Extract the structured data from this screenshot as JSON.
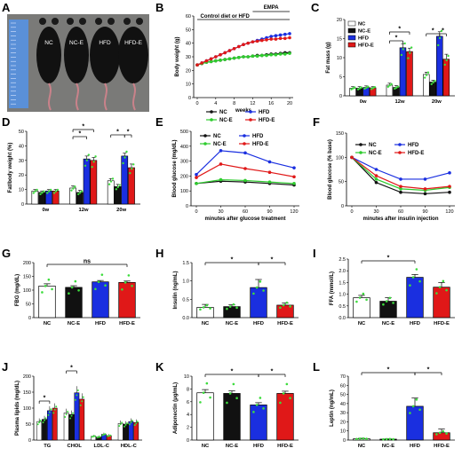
{
  "colors": {
    "NC": "#ffffff",
    "NC-E": "#111111",
    "HFD": "#1a2fe0",
    "HFD-E": "#e01818",
    "dots": "#3ddc3d",
    "line_NC": "#111111",
    "line_NCE": "#2ecc2e",
    "line_HFD": "#1a2fe0",
    "line_HFDE": "#e01818"
  },
  "panelA": {
    "label": "A",
    "mouse_labels": [
      "NC",
      "NC-E",
      "HFD",
      "HFD-E"
    ]
  },
  "chart_data": [
    {
      "id": "B",
      "type": "line",
      "ylabel": "Body weight (g)",
      "xlabel": "weeks",
      "ylim": [
        0,
        60
      ],
      "yticks": [
        0,
        10,
        20,
        30,
        40,
        50,
        60
      ],
      "xticks": [
        0,
        4,
        8,
        12,
        16,
        20
      ],
      "annot_top": "EMPA",
      "annot_mid": "Control diet or HFD",
      "legend": [
        "NC",
        "HFD",
        "NC-E",
        "HFD-E"
      ],
      "x": [
        0,
        1,
        2,
        3,
        4,
        5,
        6,
        7,
        8,
        9,
        10,
        11,
        12,
        13,
        14,
        15,
        16,
        17,
        18,
        19,
        20
      ],
      "series": [
        {
          "name": "NC",
          "values": [
            24,
            25,
            26,
            26.5,
            27,
            27.5,
            28,
            28.5,
            29,
            29.5,
            30,
            30,
            30.5,
            31,
            31,
            31.5,
            32,
            32,
            32.5,
            33,
            33
          ]
        },
        {
          "name": "HFD",
          "values": [
            24,
            25.5,
            27,
            28.5,
            30,
            31.5,
            33,
            34.5,
            36,
            37.5,
            39,
            40,
            41,
            42,
            43,
            44,
            45,
            45.5,
            46,
            46.5,
            47
          ]
        },
        {
          "name": "NC-E",
          "values": [
            24,
            25,
            26,
            26.5,
            27,
            27.5,
            28,
            28.5,
            29,
            29.5,
            30,
            30,
            30.5,
            30.5,
            31,
            31,
            31.5,
            31.5,
            32,
            32,
            32.5
          ]
        },
        {
          "name": "HFD-E",
          "values": [
            24,
            25.5,
            27,
            28.5,
            30,
            31.5,
            33,
            34.5,
            36,
            37.5,
            39,
            40,
            41,
            41.5,
            42,
            42.5,
            43,
            43,
            43.5,
            43.5,
            44
          ]
        }
      ]
    },
    {
      "id": "C",
      "type": "bar",
      "ylabel": "Fat mass (g)",
      "ylim": [
        0,
        20
      ],
      "yticks": [
        0,
        5,
        10,
        15,
        20
      ],
      "categories": [
        "0w",
        "12w",
        "20w"
      ],
      "legend": [
        "NC",
        "NC-E",
        "HFD",
        "HFD-E"
      ],
      "series": [
        {
          "name": "NC",
          "values": [
            2.0,
            2.8,
            5.6
          ],
          "err": [
            0.4,
            0.5,
            0.6
          ]
        },
        {
          "name": "NC-E",
          "values": [
            2.0,
            2.2,
            3.6
          ],
          "err": [
            0.4,
            0.5,
            0.5
          ]
        },
        {
          "name": "HFD",
          "values": [
            2.2,
            12.6,
            15.6
          ],
          "err": [
            0.4,
            1.0,
            1.2
          ]
        },
        {
          "name": "HFD-E",
          "values": [
            2.1,
            11.6,
            9.6
          ],
          "err": [
            0.3,
            0.9,
            1.3
          ]
        }
      ],
      "sig_labels": [
        "*",
        "*",
        "*",
        "*"
      ]
    },
    {
      "id": "D",
      "type": "bar",
      "ylabel": "Fat/body weight (%)",
      "ylim": [
        0,
        50
      ],
      "yticks": [
        0,
        10,
        20,
        30,
        40,
        50
      ],
      "categories": [
        "0w",
        "12w",
        "20w"
      ],
      "series": [
        {
          "name": "NC",
          "values": [
            9,
            11,
            16
          ],
          "err": [
            1,
            1.5,
            1.5
          ]
        },
        {
          "name": "NC-E",
          "values": [
            8,
            8,
            12
          ],
          "err": [
            1,
            1.5,
            1.5
          ]
        },
        {
          "name": "HFD",
          "values": [
            9,
            31,
            33
          ],
          "err": [
            1,
            2,
            2
          ]
        },
        {
          "name": "HFD-E",
          "values": [
            9,
            30,
            25
          ],
          "err": [
            1,
            2,
            2.5
          ]
        }
      ],
      "sig_labels": [
        "*",
        "*",
        "*",
        "*"
      ]
    },
    {
      "id": "E",
      "type": "line",
      "ylabel": "Blood glucose (mg/dL)",
      "xlabel": "minutes after glucose treatment",
      "ylim": [
        0,
        500
      ],
      "yticks": [
        0,
        100,
        200,
        300,
        400,
        500
      ],
      "x": [
        0,
        30,
        60,
        90,
        120
      ],
      "legend": [
        "NC",
        "HFD",
        "NC-E",
        "HFD-E"
      ],
      "series": [
        {
          "name": "NC",
          "values": [
            150,
            165,
            160,
            150,
            140
          ]
        },
        {
          "name": "HFD",
          "values": [
            210,
            370,
            355,
            295,
            255
          ]
        },
        {
          "name": "NC-E",
          "values": [
            150,
            175,
            170,
            160,
            150
          ]
        },
        {
          "name": "HFD-E",
          "values": [
            190,
            280,
            250,
            225,
            195
          ]
        }
      ]
    },
    {
      "id": "F",
      "type": "line",
      "ylabel": "Blood glucose (% base)",
      "xlabel": "minutes after insulin injection",
      "ylim": [
        0,
        150
      ],
      "yticks": [
        0,
        50,
        100,
        150
      ],
      "x": [
        0,
        30,
        60,
        90,
        120
      ],
      "legend": [
        "NC",
        "HFD",
        "NC-E",
        "HFD-E"
      ],
      "series": [
        {
          "name": "NC",
          "values": [
            100,
            48,
            28,
            25,
            28
          ]
        },
        {
          "name": "HFD",
          "values": [
            100,
            75,
            55,
            55,
            68
          ]
        },
        {
          "name": "NC-E",
          "values": [
            100,
            55,
            35,
            32,
            38
          ]
        },
        {
          "name": "HFD-E",
          "values": [
            100,
            62,
            40,
            35,
            40
          ]
        }
      ]
    },
    {
      "id": "G",
      "type": "bar",
      "ylabel": "FBG (mg/dL)",
      "ylim": [
        0,
        200
      ],
      "yticks": [
        0,
        50,
        100,
        150,
        200
      ],
      "categories": [
        "NC",
        "NC-E",
        "HFD",
        "HFD-E"
      ],
      "values": [
        115,
        110,
        130,
        128
      ],
      "err": [
        8,
        6,
        5,
        5
      ],
      "sig": "ns"
    },
    {
      "id": "H",
      "type": "bar",
      "ylabel": "Insulin (ng/mL)",
      "ylim": [
        0,
        1.5
      ],
      "yticks": [
        0.0,
        0.5,
        1.0,
        1.5
      ],
      "categories": [
        "NC",
        "NC-E",
        "HFD",
        "HFD-E"
      ],
      "values": [
        0.28,
        0.3,
        0.82,
        0.34
      ],
      "err": [
        0.08,
        0.05,
        0.22,
        0.06
      ],
      "sig": "*"
    },
    {
      "id": "I",
      "type": "bar",
      "ylabel": "FFA (mmol/L)",
      "ylim": [
        0,
        2.5
      ],
      "yticks": [
        0.0,
        0.5,
        1.0,
        1.5,
        2.0,
        2.5
      ],
      "categories": [
        "NC",
        "NC-E",
        "HFD",
        "HFD-E"
      ],
      "values": [
        0.85,
        0.7,
        1.72,
        1.3
      ],
      "err": [
        0.1,
        0.15,
        0.12,
        0.2
      ],
      "sig": "*"
    },
    {
      "id": "J",
      "type": "bar",
      "ylabel": "Plasma lipids (mg/dL)",
      "ylim": [
        0,
        200
      ],
      "yticks": [
        0,
        50,
        100,
        150,
        200
      ],
      "categories": [
        "TG",
        "CHOL",
        "LDL-C",
        "HDL-C"
      ],
      "series": [
        {
          "name": "NC",
          "values": [
            58,
            85,
            12,
            52
          ]
        },
        {
          "name": "NC-E",
          "values": [
            65,
            80,
            10,
            50
          ]
        },
        {
          "name": "HFD",
          "values": [
            92,
            148,
            18,
            58
          ]
        },
        {
          "name": "HFD-E",
          "values": [
            100,
            128,
            14,
            55
          ]
        }
      ],
      "sig": "*"
    },
    {
      "id": "K",
      "type": "bar",
      "ylabel": "Adiponectin (μg/mL)",
      "ylim": [
        0,
        10
      ],
      "yticks": [
        0,
        2,
        4,
        6,
        8,
        10
      ],
      "categories": [
        "NC",
        "NC-E",
        "HFD",
        "HFD-E"
      ],
      "values": [
        7.4,
        7.3,
        5.5,
        7.3
      ],
      "err": [
        0.5,
        0.4,
        0.35,
        0.35
      ],
      "sig": "*"
    },
    {
      "id": "L",
      "type": "bar",
      "ylabel": "Leptin (ng/mL)",
      "ylim": [
        0,
        70
      ],
      "yticks": [
        0,
        10,
        20,
        30,
        40,
        50,
        60,
        70
      ],
      "categories": [
        "NC",
        "NC-E",
        "HFD",
        "HFD-E"
      ],
      "values": [
        1.5,
        1,
        37,
        8
      ],
      "err": [
        0.5,
        0.3,
        9,
        4
      ],
      "sig": "*"
    }
  ]
}
